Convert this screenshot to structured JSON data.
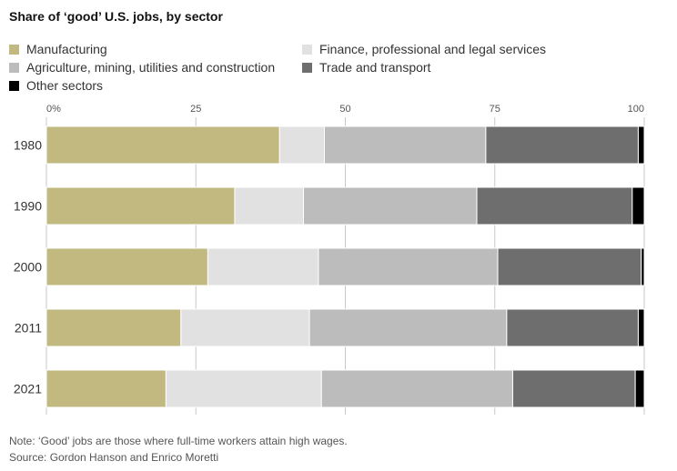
{
  "chart_data": {
    "type": "bar",
    "orientation": "horizontal",
    "stacked": true,
    "title": "Share of ‘good’ U.S. jobs, by sector",
    "categories": [
      "1980",
      "1990",
      "2000",
      "2011",
      "2021"
    ],
    "series": [
      {
        "name": "Manufacturing",
        "color": "#c2b981",
        "values": [
          39,
          31.5,
          27,
          22.5,
          20
        ]
      },
      {
        "name": "Finance, professional and legal services",
        "color": "#e1e1e1",
        "values": [
          7.5,
          11.5,
          18.5,
          21.5,
          26
        ]
      },
      {
        "name": "Agriculture, mining, utilities and construction",
        "color": "#bcbcbc",
        "values": [
          27,
          29,
          30,
          33,
          32
        ]
      },
      {
        "name": "Trade and transport",
        "color": "#6e6e6e",
        "values": [
          25.5,
          26,
          24,
          22,
          20.5
        ]
      },
      {
        "name": "Other sectors",
        "color": "#000000",
        "values": [
          1,
          2,
          0.5,
          1,
          1.5
        ]
      }
    ],
    "x_ticks": [
      0,
      25,
      50,
      75,
      100
    ],
    "x_tick_labels": [
      "0%",
      "25",
      "50",
      "75",
      "100"
    ],
    "xlim": [
      0,
      100
    ],
    "xlabel": "",
    "ylabel": "",
    "gridlines": true,
    "legend_position": "top"
  },
  "note": "Note: ‘Good’ jobs are those where full-time workers attain high wages.",
  "source": "Source: Gordon Hanson and Enrico Moretti"
}
